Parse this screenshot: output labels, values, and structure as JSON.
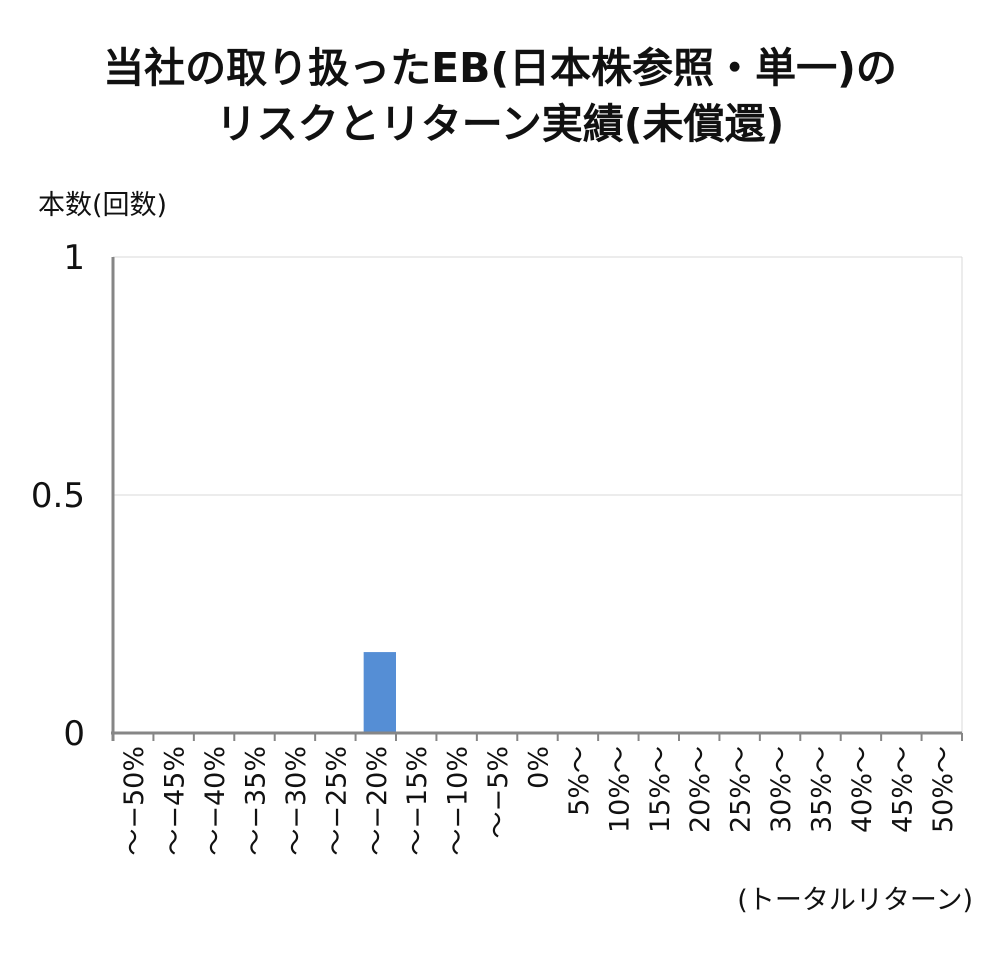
{
  "chart_data": {
    "type": "bar",
    "title": [
      "当社の取り扱ったEB(日本株参照・単一)の",
      "リスクとリターン実績(未償還)"
    ],
    "ylabel": "本数(回数)",
    "xlabel": "(トータルリターン)",
    "categories": [
      "〜−50%",
      "〜−45%",
      "〜−40%",
      "〜−35%",
      "〜−30%",
      "〜−25%",
      "〜−20%",
      "〜−15%",
      "〜−10%",
      "〜−5%",
      "0%",
      "5%〜",
      "10%〜",
      "15%〜",
      "20%〜",
      "25%〜",
      "30%〜",
      "35%〜",
      "40%〜",
      "45%〜",
      "50%〜"
    ],
    "values": [
      0,
      0,
      0,
      0,
      0,
      0,
      0.17,
      0,
      0,
      0,
      0,
      0,
      0,
      0,
      0,
      0,
      0,
      0,
      0,
      0,
      0
    ],
    "ylim": [
      0,
      1
    ],
    "yticks": [
      "0",
      "0.5",
      "1"
    ],
    "grid": true,
    "bar_color": "#558ed5"
  }
}
